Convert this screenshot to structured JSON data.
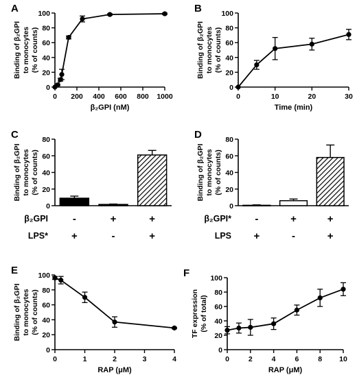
{
  "chart_data": [
    {
      "panel": "A",
      "type": "line",
      "ylabel": [
        "Binding of β₂GPI",
        "to monocytes",
        "(% of counts)"
      ],
      "xlabel": "β₂GPI (nM)",
      "xlim": [
        0,
        1000
      ],
      "ylim": [
        0,
        100
      ],
      "xticks": [
        0,
        200,
        400,
        600,
        800,
        1000
      ],
      "yticks": [
        0,
        20,
        40,
        60,
        80,
        100
      ],
      "series": [
        {
          "x": [
            0,
            25,
            50,
            62.5,
            125,
            250,
            500,
            1000
          ],
          "y": [
            0,
            3,
            10,
            17,
            67,
            92,
            98,
            99
          ],
          "err": [
            0,
            1,
            2,
            7,
            2,
            4,
            1,
            1
          ]
        }
      ]
    },
    {
      "panel": "B",
      "type": "line",
      "ylabel": [
        "Binding of β₂GPI",
        "to monocytes",
        "(% of counts)"
      ],
      "xlabel": "Time (min)",
      "xlim": [
        0,
        30
      ],
      "ylim": [
        0,
        100
      ],
      "xticks": [
        0,
        10,
        20,
        30
      ],
      "yticks": [
        0,
        20,
        40,
        60,
        80,
        100
      ],
      "series": [
        {
          "x": [
            0,
            5,
            10,
            20,
            30
          ],
          "y": [
            0,
            30,
            52,
            58,
            71
          ],
          "err": [
            0,
            6,
            15,
            8,
            7
          ]
        }
      ]
    },
    {
      "panel": "C",
      "type": "bar",
      "ylabel": [
        "Binding of β₂GPI",
        "to monocytes",
        "(% of counts)"
      ],
      "ylim": [
        0,
        80
      ],
      "yticks": [
        0,
        20,
        40,
        60,
        80
      ],
      "values": [
        9,
        1.5,
        61
      ],
      "err": [
        2.5,
        0.5,
        5.5
      ],
      "fills": [
        "black",
        "black",
        "hatch"
      ],
      "rows": [
        {
          "label": "β₂GPI",
          "signs": [
            "-",
            "+",
            "+"
          ]
        },
        {
          "label": "LPS*",
          "signs": [
            "+",
            "-",
            "+"
          ]
        }
      ]
    },
    {
      "panel": "D",
      "type": "bar",
      "ylabel": [
        "Binding of β₂GPI",
        "to monocytes",
        "(% of counts)"
      ],
      "ylim": [
        0,
        80
      ],
      "yticks": [
        0,
        20,
        40,
        60,
        80
      ],
      "values": [
        0.5,
        6,
        58
      ],
      "err": [
        0.5,
        2,
        15
      ],
      "fills": [
        "white",
        "white",
        "hatch"
      ],
      "rows": [
        {
          "label": "β₂GPI*",
          "signs": [
            "-",
            "+",
            "+"
          ]
        },
        {
          "label": "LPS",
          "signs": [
            "+",
            "-",
            "+"
          ]
        }
      ]
    },
    {
      "panel": "E",
      "type": "line",
      "ylabel": [
        "Binding of β₂GPI",
        "to monocytes",
        "(% of counts)"
      ],
      "xlabel": "RAP (μM)",
      "xlim": [
        0,
        4
      ],
      "ylim": [
        0,
        100
      ],
      "xticks": [
        0,
        1,
        2,
        3,
        4
      ],
      "yticks": [
        0,
        20,
        40,
        60,
        80,
        100
      ],
      "series": [
        {
          "x": [
            0,
            0.2,
            1,
            2,
            4
          ],
          "y": [
            96,
            93,
            70,
            37,
            29
          ],
          "err": [
            2,
            5,
            7,
            7,
            1
          ]
        }
      ]
    },
    {
      "panel": "F",
      "type": "line",
      "ylabel": [
        "TF expression",
        "(% of total)"
      ],
      "xlabel": "RAP (μM)",
      "xlim": [
        0,
        10
      ],
      "ylim": [
        0,
        100
      ],
      "xticks": [
        0,
        2,
        4,
        6,
        8,
        10
      ],
      "yticks": [
        0,
        20,
        40,
        60,
        80,
        100
      ],
      "series": [
        {
          "x": [
            0,
            1,
            2,
            4,
            6,
            8,
            10
          ],
          "y": [
            27,
            30,
            31,
            36,
            55,
            72,
            84
          ],
          "err": [
            5,
            7,
            11,
            8,
            7,
            12,
            9
          ]
        }
      ]
    }
  ]
}
